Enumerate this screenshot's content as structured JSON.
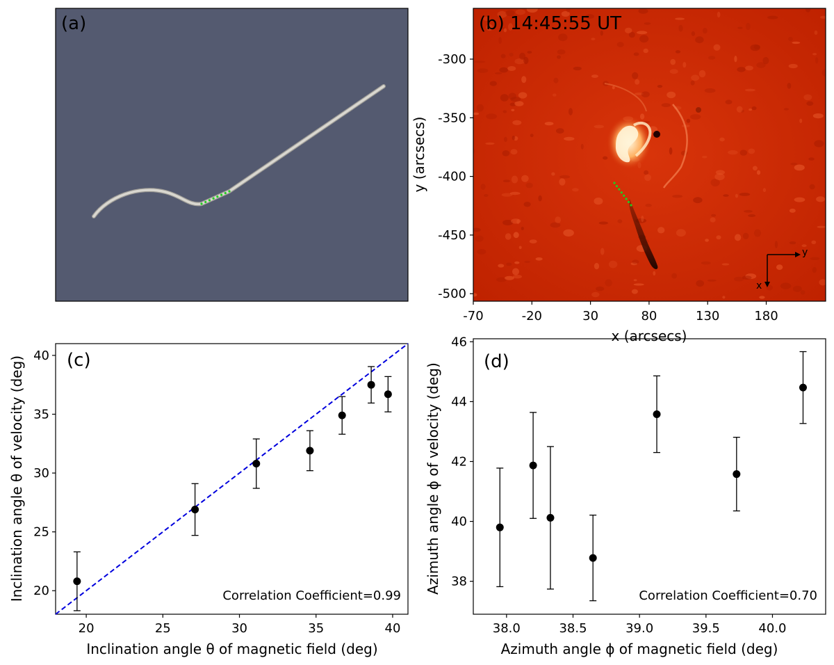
{
  "panel_a": {
    "label": "(a)",
    "background_color": "#545a70",
    "tube_color": "#d9d7d0",
    "marker_color": "#22cc22"
  },
  "panel_b": {
    "label": "(b) 14:45:55 UT",
    "xlabel": "x (arcsecs)",
    "ylabel": "y (arcsecs)",
    "xticks": [
      "-70",
      "-20",
      "30",
      "80",
      "130",
      "180"
    ],
    "yticks": [
      "-300",
      "-350",
      "-400",
      "-450",
      "-500"
    ],
    "compass": {
      "y_label": "y",
      "x_label": "x"
    },
    "image_color": "#cc2a00"
  },
  "chart_data": [
    {
      "type": "scatter",
      "panel": "(c)",
      "xlabel": "Inclination angle θ of magnetic field (deg)",
      "ylabel": "Inclination angle θ of velocity (deg)",
      "xlim": [
        18,
        41
      ],
      "ylim": [
        18,
        41
      ],
      "xticks": [
        20,
        25,
        30,
        35,
        40
      ],
      "yticks": [
        20,
        25,
        30,
        35,
        40
      ],
      "x": [
        19.4,
        27.1,
        31.1,
        34.6,
        36.7,
        38.6,
        39.7
      ],
      "y": [
        20.8,
        26.9,
        30.8,
        31.9,
        34.9,
        37.5,
        36.7
      ],
      "yerr": [
        2.5,
        2.2,
        2.1,
        1.7,
        1.6,
        1.55,
        1.5
      ],
      "reference_line": {
        "style": "dashed",
        "color": "#0000dd",
        "from": [
          18,
          18
        ],
        "to": [
          41,
          41
        ]
      },
      "annotation": "Correlation Coefficient=0.99"
    },
    {
      "type": "scatter",
      "panel": "(d)",
      "xlabel": "Azimuth angle ϕ of magnetic field (deg)",
      "ylabel": "Azimuth angle ϕ of velocity (deg)",
      "xlim": [
        37.75,
        40.4
      ],
      "ylim": [
        36.9,
        46.1
      ],
      "xticks": [
        "38.0",
        "38.5",
        "39.0",
        "39.5",
        "40.0"
      ],
      "yticks": [
        "38",
        "40",
        "42",
        "44",
        "46"
      ],
      "x": [
        37.95,
        38.2,
        38.33,
        38.65,
        39.13,
        39.73,
        40.23
      ],
      "y": [
        39.8,
        41.87,
        40.12,
        38.78,
        43.58,
        41.58,
        44.47
      ],
      "yerr": [
        1.98,
        1.77,
        2.38,
        1.43,
        1.28,
        1.23,
        1.2
      ],
      "annotation": "Correlation Coefficient=0.70"
    }
  ]
}
